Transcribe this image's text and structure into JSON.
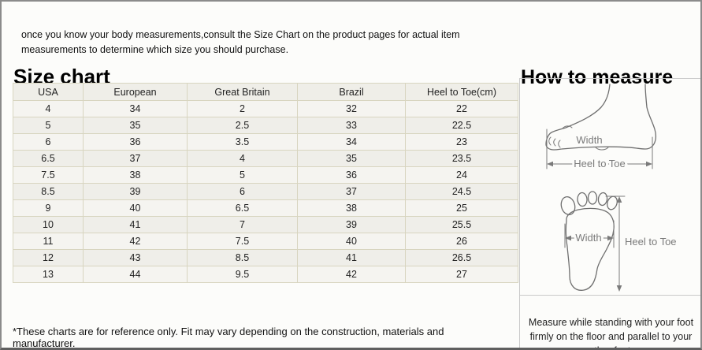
{
  "page": {
    "intro": "once you know your body measurements,consult the Size Chart on the product pages for actual item measurements to determine which size you should purchase."
  },
  "size_chart": {
    "title": "Size chart",
    "columns": [
      "USA",
      "European",
      "Great Britain",
      "Brazil",
      "Heel to Toe(cm)"
    ],
    "rows": [
      [
        "4",
        "34",
        "2",
        "32",
        "22"
      ],
      [
        "5",
        "35",
        "2.5",
        "33",
        "22.5"
      ],
      [
        "6",
        "36",
        "3.5",
        "34",
        "23"
      ],
      [
        "6.5",
        "37",
        "4",
        "35",
        "23.5"
      ],
      [
        "7.5",
        "38",
        "5",
        "36",
        "24"
      ],
      [
        "8.5",
        "39",
        "6",
        "37",
        "24.5"
      ],
      [
        "9",
        "40",
        "6.5",
        "38",
        "25"
      ],
      [
        "10",
        "41",
        "7",
        "39",
        "25.5"
      ],
      [
        "11",
        "42",
        "7.5",
        "40",
        "26"
      ],
      [
        "12",
        "43",
        "8.5",
        "41",
        "26.5"
      ],
      [
        "13",
        "44",
        "9.5",
        "42",
        "27"
      ]
    ],
    "footnote": "*These charts are for reference only. Fit may vary depending on the construction, materials and manufacturer."
  },
  "how_to_measure": {
    "title": "How to measure",
    "side_diagram": {
      "width_label": "Width",
      "length_label": "Heel to Toe"
    },
    "sole_diagram": {
      "width_label": "Width",
      "length_label": "Heel to Toe"
    },
    "note": "Measure while standing with your foot firmly on the floor and parallel to your other foot."
  },
  "colors": {
    "table_border": "#d8d5c0",
    "row_light": "#f5f4f0",
    "row_dark": "#efeee9",
    "frame_border": "#8b8b8b",
    "divider": "#c9c9c9",
    "diagram_stroke": "#6f6f6f",
    "diagram_label": "#7a7a7a"
  }
}
